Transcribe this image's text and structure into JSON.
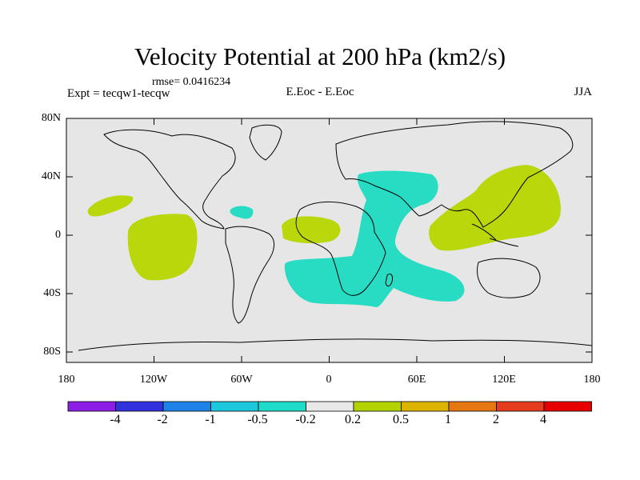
{
  "title": "Velocity Potential at 200 hPa (km2/s)",
  "rmse": "rmse= 0.0416234",
  "left_subtitle": "Expt = tecqw1-tecqw",
  "center_subtitle": "E.Eoc - E.Eoc",
  "right_subtitle": "JJA",
  "lat_labels": [
    "80N",
    "40N",
    "0",
    "40S",
    "80S"
  ],
  "lon_labels": [
    "180",
    "120W",
    "60W",
    "0",
    "60E",
    "120E",
    "180"
  ],
  "colorbar": {
    "labels": [
      "-4",
      "-2",
      "-1",
      "-0.5",
      "-0.2",
      "0.2",
      "0.5",
      "1",
      "2",
      "4"
    ],
    "colors": [
      "#8c1ee6",
      "#3232dc",
      "#1e82e6",
      "#1ec8dc",
      "#1edcc8",
      "#e8e8e8",
      "#b4d200",
      "#dcb400",
      "#e67814",
      "#e63c1e",
      "#e60000"
    ]
  },
  "field": {
    "positive_color": "#b9d70a",
    "negative_color": "#28dcc3",
    "background_color": "#e6e6e6"
  }
}
